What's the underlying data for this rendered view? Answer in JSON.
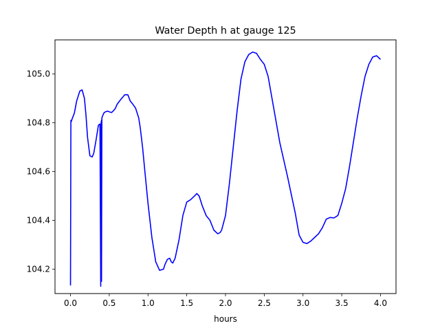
{
  "chart_data": {
    "type": "line",
    "title": "Water Depth h at gauge 125",
    "xlabel": "hours",
    "ylabel": "",
    "xlim": [
      -0.2,
      4.2
    ],
    "ylim": [
      104.1,
      105.14
    ],
    "xticks": [
      0.0,
      0.5,
      1.0,
      1.5,
      2.0,
      2.5,
      3.0,
      3.5,
      4.0
    ],
    "xtick_labels": [
      "0.0",
      "0.5",
      "1.0",
      "1.5",
      "2.0",
      "2.5",
      "3.0",
      "3.5",
      "4.0"
    ],
    "yticks": [
      104.2,
      104.4,
      104.6,
      104.8,
      105.0
    ],
    "ytick_labels": [
      "104.2",
      "104.4",
      "104.6",
      "104.8",
      "105.0"
    ],
    "grid": false,
    "series": [
      {
        "color": "#0000ff",
        "x": [
          0.0,
          0.0,
          0.005,
          0.005,
          0.01,
          0.02,
          0.05,
          0.08,
          0.12,
          0.15,
          0.18,
          0.2,
          0.22,
          0.25,
          0.28,
          0.3,
          0.33,
          0.36,
          0.38,
          0.39,
          0.39,
          0.395,
          0.4,
          0.4,
          0.405,
          0.41,
          0.43,
          0.45,
          0.48,
          0.5,
          0.53,
          0.55,
          0.58,
          0.6,
          0.63,
          0.66,
          0.7,
          0.74,
          0.77,
          0.8,
          0.84,
          0.88,
          0.9,
          0.93,
          0.96,
          1.0,
          1.05,
          1.1,
          1.15,
          1.2,
          1.22,
          1.25,
          1.28,
          1.3,
          1.32,
          1.35,
          1.4,
          1.45,
          1.5,
          1.55,
          1.6,
          1.63,
          1.66,
          1.7,
          1.75,
          1.8,
          1.85,
          1.9,
          1.93,
          1.95,
          2.0,
          2.05,
          2.1,
          2.15,
          2.2,
          2.25,
          2.3,
          2.35,
          2.4,
          2.45,
          2.5,
          2.55,
          2.6,
          2.7,
          2.8,
          2.9,
          2.95,
          3.0,
          3.05,
          3.1,
          3.15,
          3.2,
          3.25,
          3.3,
          3.35,
          3.4,
          3.45,
          3.5,
          3.55,
          3.6,
          3.65,
          3.7,
          3.75,
          3.8,
          3.85,
          3.9,
          3.95,
          4.0
        ],
        "y": [
          104.19,
          104.135,
          104.805,
          104.81,
          104.805,
          104.815,
          104.84,
          104.89,
          104.93,
          104.935,
          104.9,
          104.83,
          104.74,
          104.665,
          104.66,
          104.675,
          104.73,
          104.79,
          104.795,
          104.13,
          104.14,
          104.8,
          104.81,
          104.15,
          104.82,
          104.825,
          104.84,
          104.845,
          104.848,
          104.845,
          104.842,
          104.848,
          104.86,
          104.875,
          104.888,
          104.9,
          104.915,
          104.915,
          104.89,
          104.878,
          104.86,
          104.82,
          104.78,
          104.7,
          104.6,
          104.47,
          104.33,
          104.23,
          104.195,
          104.2,
          104.22,
          104.24,
          104.245,
          104.23,
          104.225,
          104.245,
          104.32,
          104.42,
          104.475,
          104.485,
          104.5,
          104.51,
          104.5,
          104.46,
          104.42,
          104.4,
          104.36,
          104.345,
          104.35,
          104.36,
          104.42,
          104.55,
          104.7,
          104.85,
          104.98,
          105.05,
          105.08,
          105.09,
          105.085,
          105.06,
          105.04,
          104.99,
          104.9,
          104.72,
          104.58,
          104.43,
          104.34,
          104.31,
          104.305,
          104.315,
          104.33,
          104.345,
          104.37,
          104.405,
          104.412,
          104.41,
          104.42,
          104.47,
          104.53,
          104.62,
          104.72,
          104.82,
          104.91,
          104.99,
          105.04,
          105.07,
          105.075,
          105.06
        ]
      }
    ]
  }
}
